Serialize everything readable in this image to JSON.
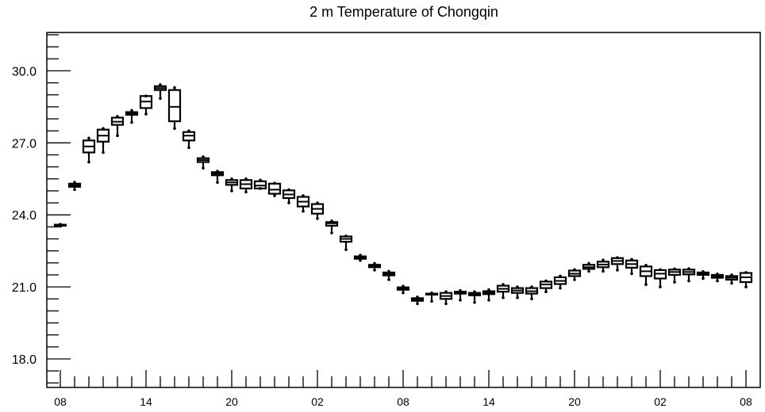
{
  "chart_data": {
    "type": "box",
    "title": "2 m Temperature of Chongqin",
    "xlabel": "",
    "ylabel": "",
    "ylim": [
      16.8,
      31.6
    ],
    "y_ticks": [
      18.0,
      21.0,
      24.0,
      27.0,
      30.0
    ],
    "y_tick_labels": [
      "18.0",
      "21.0",
      "24.0",
      "27.0",
      "30.0"
    ],
    "x_tick_labels": [
      "08",
      "14",
      "20",
      "02",
      "08",
      "14",
      "20",
      "02",
      "08"
    ],
    "x_tick_interval_hours": 6,
    "x_minor_tick_hours": 1,
    "grid": false,
    "legend": "none",
    "line_color": "#000000",
    "series": [
      {
        "boxes": [
          {
            "hour": 0,
            "min": 23.53,
            "q1": 23.55,
            "median": 23.57,
            "q3": 23.59,
            "max": 23.61
          },
          {
            "hour": 1,
            "min": 25.05,
            "q1": 25.17,
            "median": 25.23,
            "q3": 25.3,
            "max": 25.36
          },
          {
            "hour": 2,
            "min": 26.2,
            "q1": 26.6,
            "median": 26.85,
            "q3": 27.1,
            "max": 27.2
          },
          {
            "hour": 3,
            "min": 26.6,
            "q1": 27.05,
            "median": 27.3,
            "q3": 27.55,
            "max": 27.6
          },
          {
            "hour": 4,
            "min": 27.3,
            "q1": 27.75,
            "median": 27.88,
            "q3": 28.05,
            "max": 28.1
          },
          {
            "hour": 5,
            "min": 27.85,
            "q1": 28.17,
            "median": 28.22,
            "q3": 28.28,
            "max": 28.35
          },
          {
            "hour": 6,
            "min": 28.2,
            "q1": 28.45,
            "median": 28.72,
            "q3": 28.95,
            "max": 28.95
          },
          {
            "hour": 7,
            "min": 28.85,
            "q1": 29.2,
            "median": 29.28,
            "q3": 29.36,
            "max": 29.42
          },
          {
            "hour": 8,
            "min": 27.6,
            "q1": 27.9,
            "median": 28.5,
            "q3": 29.2,
            "max": 29.3
          },
          {
            "hour": 9,
            "min": 26.8,
            "q1": 27.1,
            "median": 27.3,
            "q3": 27.45,
            "max": 27.5
          },
          {
            "hour": 10,
            "min": 25.95,
            "q1": 26.2,
            "median": 26.28,
            "q3": 26.36,
            "max": 26.42
          },
          {
            "hour": 11,
            "min": 25.35,
            "q1": 25.65,
            "median": 25.72,
            "q3": 25.78,
            "max": 25.82
          },
          {
            "hour": 12,
            "min": 25.0,
            "q1": 25.25,
            "median": 25.35,
            "q3": 25.45,
            "max": 25.5
          },
          {
            "hour": 13,
            "min": 24.95,
            "q1": 25.1,
            "median": 25.28,
            "q3": 25.45,
            "max": 25.5
          },
          {
            "hour": 14,
            "min": 25.1,
            "q1": 25.1,
            "median": 25.22,
            "q3": 25.4,
            "max": 25.45
          },
          {
            "hour": 15,
            "min": 24.8,
            "q1": 24.88,
            "median": 25.05,
            "q3": 25.3,
            "max": 25.32
          },
          {
            "hour": 16,
            "min": 24.5,
            "q1": 24.7,
            "median": 24.85,
            "q3": 25.02,
            "max": 25.05
          },
          {
            "hour": 17,
            "min": 24.15,
            "q1": 24.35,
            "median": 24.55,
            "q3": 24.75,
            "max": 24.8
          },
          {
            "hour": 18,
            "min": 23.85,
            "q1": 24.05,
            "median": 24.25,
            "q3": 24.45,
            "max": 24.5
          },
          {
            "hour": 19,
            "min": 23.25,
            "q1": 23.55,
            "median": 23.65,
            "q3": 23.7,
            "max": 23.75
          },
          {
            "hour": 20,
            "min": 22.55,
            "q1": 22.88,
            "median": 23.0,
            "q3": 23.1,
            "max": 23.12
          },
          {
            "hour": 21,
            "min": 22.1,
            "q1": 22.17,
            "median": 22.22,
            "q3": 22.27,
            "max": 22.32
          },
          {
            "hour": 22,
            "min": 21.7,
            "q1": 21.82,
            "median": 21.87,
            "q3": 21.92,
            "max": 21.98
          },
          {
            "hour": 23,
            "min": 21.3,
            "q1": 21.48,
            "median": 21.54,
            "q3": 21.6,
            "max": 21.65
          },
          {
            "hour": 24,
            "min": 20.75,
            "q1": 20.88,
            "median": 20.93,
            "q3": 20.98,
            "max": 21.03
          },
          {
            "hour": 25,
            "min": 20.3,
            "q1": 20.42,
            "median": 20.48,
            "q3": 20.53,
            "max": 20.58
          },
          {
            "hour": 26,
            "min": 20.4,
            "q1": 20.68,
            "median": 20.7,
            "q3": 20.72,
            "max": 20.75
          },
          {
            "hour": 27,
            "min": 20.3,
            "q1": 20.5,
            "median": 20.62,
            "q3": 20.75,
            "max": 20.8
          },
          {
            "hour": 28,
            "min": 20.45,
            "q1": 20.72,
            "median": 20.76,
            "q3": 20.8,
            "max": 20.85
          },
          {
            "hour": 29,
            "min": 20.35,
            "q1": 20.65,
            "median": 20.7,
            "q3": 20.75,
            "max": 20.8
          },
          {
            "hour": 30,
            "min": 20.45,
            "q1": 20.7,
            "median": 20.76,
            "q3": 20.82,
            "max": 20.88
          },
          {
            "hour": 31,
            "min": 20.55,
            "q1": 20.8,
            "median": 20.92,
            "q3": 21.05,
            "max": 21.1
          },
          {
            "hour": 32,
            "min": 20.55,
            "q1": 20.75,
            "median": 20.85,
            "q3": 20.95,
            "max": 21.0
          },
          {
            "hour": 33,
            "min": 20.5,
            "q1": 20.72,
            "median": 20.82,
            "q3": 20.95,
            "max": 21.0
          },
          {
            "hour": 34,
            "min": 20.8,
            "q1": 20.95,
            "median": 21.1,
            "q3": 21.22,
            "max": 21.25
          },
          {
            "hour": 35,
            "min": 20.95,
            "q1": 21.12,
            "median": 21.25,
            "q3": 21.4,
            "max": 21.45
          },
          {
            "hour": 36,
            "min": 21.3,
            "q1": 21.45,
            "median": 21.55,
            "q3": 21.68,
            "max": 21.72
          },
          {
            "hour": 37,
            "min": 21.65,
            "q1": 21.75,
            "median": 21.82,
            "q3": 21.92,
            "max": 21.98
          },
          {
            "hour": 38,
            "min": 21.65,
            "q1": 21.82,
            "median": 21.93,
            "q3": 22.05,
            "max": 22.12
          },
          {
            "hour": 39,
            "min": 21.7,
            "q1": 21.95,
            "median": 22.08,
            "q3": 22.2,
            "max": 22.22
          },
          {
            "hour": 40,
            "min": 21.55,
            "q1": 21.8,
            "median": 21.95,
            "q3": 22.1,
            "max": 22.15
          },
          {
            "hour": 41,
            "min": 21.1,
            "q1": 21.45,
            "median": 21.65,
            "q3": 21.85,
            "max": 21.9
          },
          {
            "hour": 42,
            "min": 21.0,
            "q1": 21.35,
            "median": 21.55,
            "q3": 21.7,
            "max": 21.72
          },
          {
            "hour": 43,
            "min": 21.2,
            "q1": 21.5,
            "median": 21.62,
            "q3": 21.72,
            "max": 21.75
          },
          {
            "hour": 44,
            "min": 21.25,
            "q1": 21.52,
            "median": 21.62,
            "q3": 21.72,
            "max": 21.76
          },
          {
            "hour": 45,
            "min": 21.35,
            "q1": 21.5,
            "median": 21.55,
            "q3": 21.6,
            "max": 21.64
          },
          {
            "hour": 46,
            "min": 21.25,
            "q1": 21.38,
            "median": 21.44,
            "q3": 21.5,
            "max": 21.54
          },
          {
            "hour": 47,
            "min": 21.15,
            "q1": 21.3,
            "median": 21.38,
            "q3": 21.45,
            "max": 21.5
          },
          {
            "hour": 48,
            "min": 21.0,
            "q1": 21.2,
            "median": 21.4,
            "q3": 21.58,
            "max": 21.6
          }
        ]
      }
    ]
  }
}
